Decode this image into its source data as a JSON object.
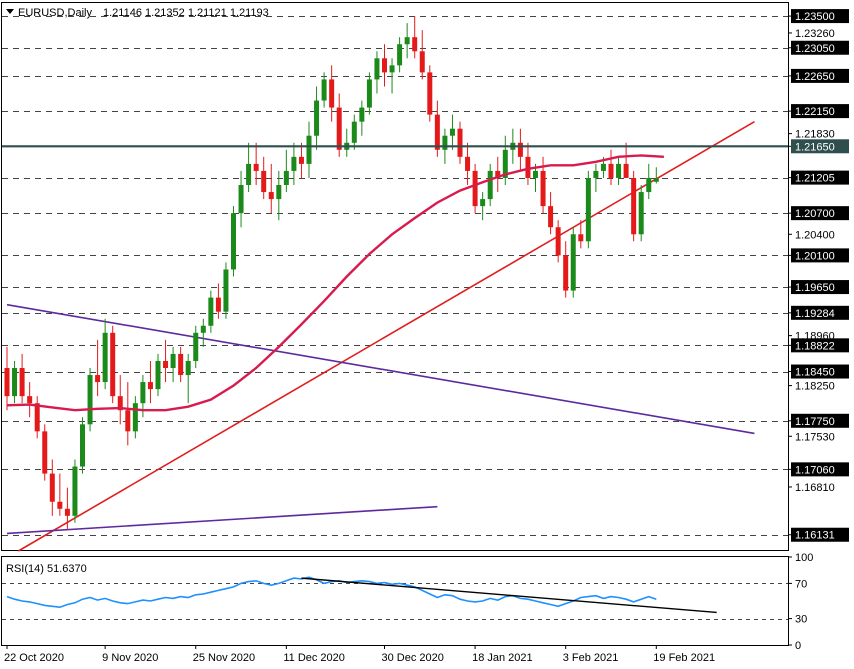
{
  "header": {
    "symbol_tf": "EURUSD,Daily",
    "ohlc": "1.21146 1.21352 1.21121 1.21193"
  },
  "rsi_header": {
    "label": "RSI(14) 51.6370"
  },
  "colors": {
    "bull": "#1b8a1b",
    "bear": "#e41a1a",
    "ma": "#d81b4e",
    "trend_red": "#e01e1e",
    "trend_purple": "#5c2a9e",
    "resistance": "#2f4f4f",
    "rsi_line": "#1e90ff",
    "rsi_trend": "#000000",
    "level_dash": "#444444"
  },
  "chart_data": {
    "type": "candlestick",
    "symbol": "EURUSD",
    "timeframe": "Daily",
    "ylim": [
      1.159,
      1.237
    ],
    "price_ticks": [
      "1.23500",
      "1.23260",
      "1.23050",
      "1.22650",
      "1.22150",
      "1.21830",
      "1.21650",
      "1.21205",
      "1.20700",
      "1.20400",
      "1.20100",
      "1.19650",
      "1.19284",
      "1.18960",
      "1.18822",
      "1.18450",
      "1.18250",
      "1.17750",
      "1.17530",
      "1.17060",
      "1.16810",
      "1.16131"
    ],
    "dashed_levels": [
      "1.23500",
      "1.23050",
      "1.22650",
      "1.22150",
      "1.21205",
      "1.20700",
      "1.20100",
      "1.19650",
      "1.19284",
      "1.18822",
      "1.18450",
      "1.17750",
      "1.17060",
      "1.16131"
    ],
    "highlighted_levels": [
      "1.23500",
      "1.23050",
      "1.22650",
      "1.22150",
      "1.21650",
      "1.21205",
      "1.20700",
      "1.20100",
      "1.19650",
      "1.19284",
      "1.18822",
      "1.18450",
      "1.17750",
      "1.17060",
      "1.16131"
    ],
    "horizontal_resistance": 1.2165,
    "date_labels": [
      {
        "label": "22 Oct 2020",
        "index": 0
      },
      {
        "label": "9 Nov 2020",
        "index": 13
      },
      {
        "label": "25 Nov 2020",
        "index": 25
      },
      {
        "label": "11 Dec 2020",
        "index": 37
      },
      {
        "label": "30 Dec 2020",
        "index": 50
      },
      {
        "label": "18 Jan 2021",
        "index": 62
      },
      {
        "label": "3 Feb 2021",
        "index": 74
      },
      {
        "label": "19 Feb 2021",
        "index": 86
      }
    ],
    "candles": [
      [
        1.185,
        1.188,
        1.179,
        1.181
      ],
      [
        1.181,
        1.186,
        1.18,
        1.185
      ],
      [
        1.185,
        1.187,
        1.18,
        1.181
      ],
      [
        1.181,
        1.183,
        1.178,
        1.18
      ],
      [
        1.18,
        1.181,
        1.175,
        1.176
      ],
      [
        1.176,
        1.177,
        1.169,
        1.17
      ],
      [
        1.17,
        1.172,
        1.164,
        1.166
      ],
      [
        1.166,
        1.17,
        1.164,
        1.165
      ],
      [
        1.165,
        1.168,
        1.162,
        1.164
      ],
      [
        1.164,
        1.172,
        1.163,
        1.171
      ],
      [
        1.171,
        1.178,
        1.17,
        1.177
      ],
      [
        1.177,
        1.185,
        1.176,
        1.184
      ],
      [
        1.184,
        1.189,
        1.181,
        1.183
      ],
      [
        1.183,
        1.192,
        1.182,
        1.19
      ],
      [
        1.19,
        1.191,
        1.18,
        1.181
      ],
      [
        1.181,
        1.184,
        1.177,
        1.179
      ],
      [
        1.179,
        1.183,
        1.174,
        1.176
      ],
      [
        1.176,
        1.181,
        1.175,
        1.18
      ],
      [
        1.18,
        1.184,
        1.178,
        1.183
      ],
      [
        1.183,
        1.186,
        1.18,
        1.182
      ],
      [
        1.182,
        1.187,
        1.181,
        1.186
      ],
      [
        1.186,
        1.189,
        1.183,
        1.185
      ],
      [
        1.185,
        1.188,
        1.183,
        1.187
      ],
      [
        1.187,
        1.188,
        1.183,
        1.184
      ],
      [
        1.184,
        1.187,
        1.18,
        1.186
      ],
      [
        1.186,
        1.191,
        1.185,
        1.19
      ],
      [
        1.19,
        1.192,
        1.188,
        1.191
      ],
      [
        1.191,
        1.196,
        1.19,
        1.195
      ],
      [
        1.195,
        1.197,
        1.192,
        1.193
      ],
      [
        1.193,
        1.2,
        1.192,
        1.199
      ],
      [
        1.199,
        1.208,
        1.198,
        1.207
      ],
      [
        1.207,
        1.213,
        1.205,
        1.211
      ],
      [
        1.211,
        1.217,
        1.21,
        1.214
      ],
      [
        1.214,
        1.217,
        1.211,
        1.213
      ],
      [
        1.213,
        1.215,
        1.209,
        1.21
      ],
      [
        1.21,
        1.214,
        1.207,
        1.209
      ],
      [
        1.209,
        1.213,
        1.206,
        1.211
      ],
      [
        1.211,
        1.216,
        1.21,
        1.213
      ],
      [
        1.213,
        1.217,
        1.211,
        1.215
      ],
      [
        1.215,
        1.217,
        1.212,
        1.214
      ],
      [
        1.214,
        1.22,
        1.212,
        1.218
      ],
      [
        1.218,
        1.225,
        1.216,
        1.223
      ],
      [
        1.223,
        1.227,
        1.222,
        1.226
      ],
      [
        1.226,
        1.228,
        1.22,
        1.222
      ],
      [
        1.222,
        1.224,
        1.215,
        1.216
      ],
      [
        1.216,
        1.219,
        1.215,
        1.217
      ],
      [
        1.217,
        1.221,
        1.216,
        1.22
      ],
      [
        1.22,
        1.223,
        1.218,
        1.222
      ],
      [
        1.222,
        1.227,
        1.221,
        1.226
      ],
      [
        1.226,
        1.23,
        1.224,
        1.229
      ],
      [
        1.229,
        1.231,
        1.225,
        1.227
      ],
      [
        1.227,
        1.229,
        1.224,
        1.228
      ],
      [
        1.228,
        1.232,
        1.227,
        1.231
      ],
      [
        1.231,
        1.234,
        1.229,
        1.232
      ],
      [
        1.232,
        1.235,
        1.229,
        1.23
      ],
      [
        1.23,
        1.233,
        1.226,
        1.227
      ],
      [
        1.227,
        1.228,
        1.22,
        1.221
      ],
      [
        1.221,
        1.223,
        1.215,
        1.216
      ],
      [
        1.216,
        1.219,
        1.214,
        1.218
      ],
      [
        1.218,
        1.221,
        1.216,
        1.219
      ],
      [
        1.219,
        1.22,
        1.214,
        1.215
      ],
      [
        1.215,
        1.217,
        1.211,
        1.213
      ],
      [
        1.213,
        1.214,
        1.207,
        1.208
      ],
      [
        1.208,
        1.21,
        1.206,
        1.209
      ],
      [
        1.209,
        1.214,
        1.208,
        1.213
      ],
      [
        1.213,
        1.215,
        1.21,
        1.212
      ],
      [
        1.212,
        1.218,
        1.211,
        1.216
      ],
      [
        1.216,
        1.219,
        1.214,
        1.217
      ],
      [
        1.217,
        1.219,
        1.213,
        1.215
      ],
      [
        1.215,
        1.217,
        1.211,
        1.212
      ],
      [
        1.212,
        1.214,
        1.21,
        1.213
      ],
      [
        1.213,
        1.215,
        1.207,
        1.208
      ],
      [
        1.208,
        1.21,
        1.204,
        1.205
      ],
      [
        1.205,
        1.206,
        1.2,
        1.201
      ],
      [
        1.201,
        1.203,
        1.195,
        1.196
      ],
      [
        1.196,
        1.205,
        1.195,
        1.204
      ],
      [
        1.204,
        1.206,
        1.202,
        1.203
      ],
      [
        1.203,
        1.213,
        1.202,
        1.212
      ],
      [
        1.212,
        1.214,
        1.21,
        1.213
      ],
      [
        1.213,
        1.215,
        1.212,
        1.214
      ],
      [
        1.214,
        1.216,
        1.211,
        1.212
      ],
      [
        1.212,
        1.215,
        1.211,
        1.214
      ],
      [
        1.214,
        1.217,
        1.212,
        1.212
      ],
      [
        1.212,
        1.213,
        1.203,
        1.204
      ],
      [
        1.204,
        1.211,
        1.203,
        1.21
      ],
      [
        1.21,
        1.214,
        1.209,
        1.212
      ],
      [
        1.21146,
        1.21352,
        1.21121,
        1.21193
      ]
    ],
    "ma_line": [
      [
        0,
        1.1797
      ],
      [
        3,
        1.1798
      ],
      [
        6,
        1.1794
      ],
      [
        9,
        1.179
      ],
      [
        12,
        1.1792
      ],
      [
        15,
        1.1793
      ],
      [
        18,
        1.179
      ],
      [
        21,
        1.179
      ],
      [
        24,
        1.1795
      ],
      [
        27,
        1.1805
      ],
      [
        30,
        1.1825
      ],
      [
        33,
        1.185
      ],
      [
        36,
        1.188
      ],
      [
        39,
        1.1912
      ],
      [
        42,
        1.1945
      ],
      [
        45,
        1.198
      ],
      [
        48,
        1.2012
      ],
      [
        51,
        1.204
      ],
      [
        54,
        1.2063
      ],
      [
        57,
        1.2085
      ],
      [
        60,
        1.2102
      ],
      [
        63,
        1.2114
      ],
      [
        66,
        1.2125
      ],
      [
        69,
        1.2133
      ],
      [
        72,
        1.2138
      ],
      [
        75,
        1.2138
      ],
      [
        78,
        1.2143
      ],
      [
        81,
        1.215
      ],
      [
        84,
        1.2152
      ],
      [
        87,
        1.215
      ]
    ],
    "trendlines": [
      {
        "kind": "red",
        "from": [
          1.5,
          1.159
        ],
        "to": [
          99,
          1.22
        ]
      },
      {
        "kind": "purple",
        "from": [
          0,
          1.194
        ],
        "to": [
          99,
          1.1757
        ]
      },
      {
        "kind": "purple",
        "from": [
          0,
          1.1615
        ],
        "to": [
          57,
          1.1653
        ]
      }
    ],
    "rsi": {
      "ylim": [
        0,
        100
      ],
      "ticks": [
        "100",
        "70",
        "30",
        "0"
      ],
      "levels": [
        70,
        30
      ],
      "values": [
        55,
        52,
        50,
        49,
        47,
        45,
        44,
        43,
        46,
        48,
        52,
        54,
        51,
        53,
        50,
        48,
        47,
        49,
        51,
        50,
        52,
        54,
        53,
        55,
        54,
        57,
        58,
        60,
        62,
        64,
        66,
        70,
        72,
        73,
        70,
        68,
        70,
        73,
        76,
        75,
        77,
        74,
        70,
        72,
        73,
        71,
        72,
        73,
        72,
        70,
        71,
        69,
        70,
        68,
        66,
        62,
        58,
        54,
        57,
        56,
        52,
        50,
        49,
        50,
        53,
        51,
        55,
        56,
        53,
        52,
        50,
        48,
        46,
        44,
        47,
        50,
        54,
        55,
        56,
        53,
        55,
        54,
        52,
        49,
        52,
        55,
        52
      ],
      "trend": {
        "from": [
          39,
          76
        ],
        "to": [
          94,
          37
        ]
      }
    }
  }
}
